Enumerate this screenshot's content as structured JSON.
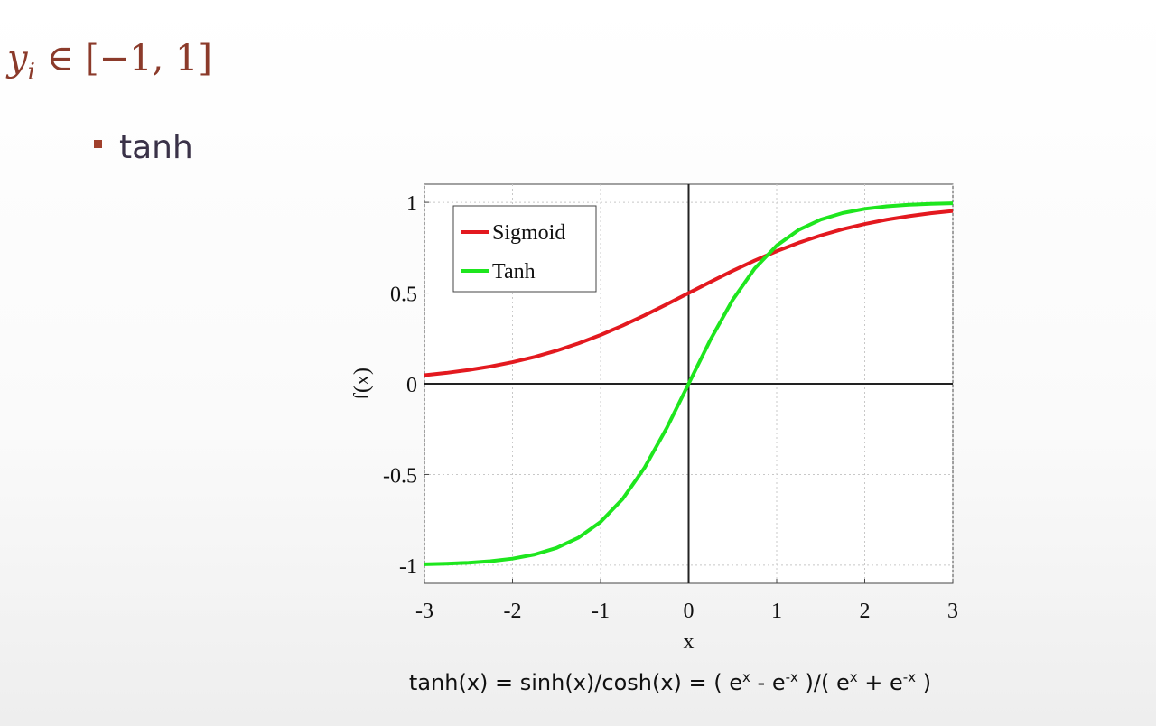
{
  "heading": {
    "variable": "y",
    "subscript": "i",
    "rest": " ∈ [−1, 1]"
  },
  "bullet": "tanh",
  "caption": [
    "tanh(x) = sinh(x)/cosh(x) = ( e",
    "x",
    " - e",
    "-x",
    " )/( e",
    "x",
    " + e",
    "-x",
    " )"
  ],
  "chart_data": {
    "type": "line",
    "xlabel": "x",
    "ylabel": "f(x)",
    "x": [
      -3,
      -2.75,
      -2.5,
      -2.25,
      -2,
      -1.75,
      -1.5,
      -1.25,
      -1,
      -0.75,
      -0.5,
      -0.25,
      0,
      0.25,
      0.5,
      0.75,
      1,
      1.25,
      1.5,
      1.75,
      2,
      2.25,
      2.5,
      2.75,
      3
    ],
    "series": [
      {
        "name": "Sigmoid",
        "color": "#e3191f",
        "values": [
          0.0474,
          0.0601,
          0.0759,
          0.0953,
          0.1192,
          0.148,
          0.1824,
          0.2227,
          0.2689,
          0.3208,
          0.3775,
          0.4378,
          0.5,
          0.5622,
          0.6225,
          0.6792,
          0.7311,
          0.7773,
          0.8176,
          0.852,
          0.8808,
          0.9047,
          0.9241,
          0.9399,
          0.9526
        ]
      },
      {
        "name": "Tanh",
        "color": "#1ee61e",
        "values": [
          -0.9951,
          -0.9918,
          -0.9866,
          -0.978,
          -0.964,
          -0.9414,
          -0.9051,
          -0.8483,
          -0.7616,
          -0.6351,
          -0.4621,
          -0.2449,
          0,
          0.2449,
          0.4621,
          0.6351,
          0.7616,
          0.8483,
          0.9051,
          0.9414,
          0.964,
          0.978,
          0.9866,
          0.9918,
          0.9951
        ]
      }
    ],
    "xlim": [
      -3,
      3
    ],
    "ylim": [
      -1.1,
      1.1
    ],
    "xticks": [
      -3,
      -2,
      -1,
      0,
      1,
      2,
      3
    ],
    "yticks": [
      -1,
      -0.5,
      0,
      0.5,
      1
    ],
    "grid": true,
    "legend": "upper-left"
  }
}
